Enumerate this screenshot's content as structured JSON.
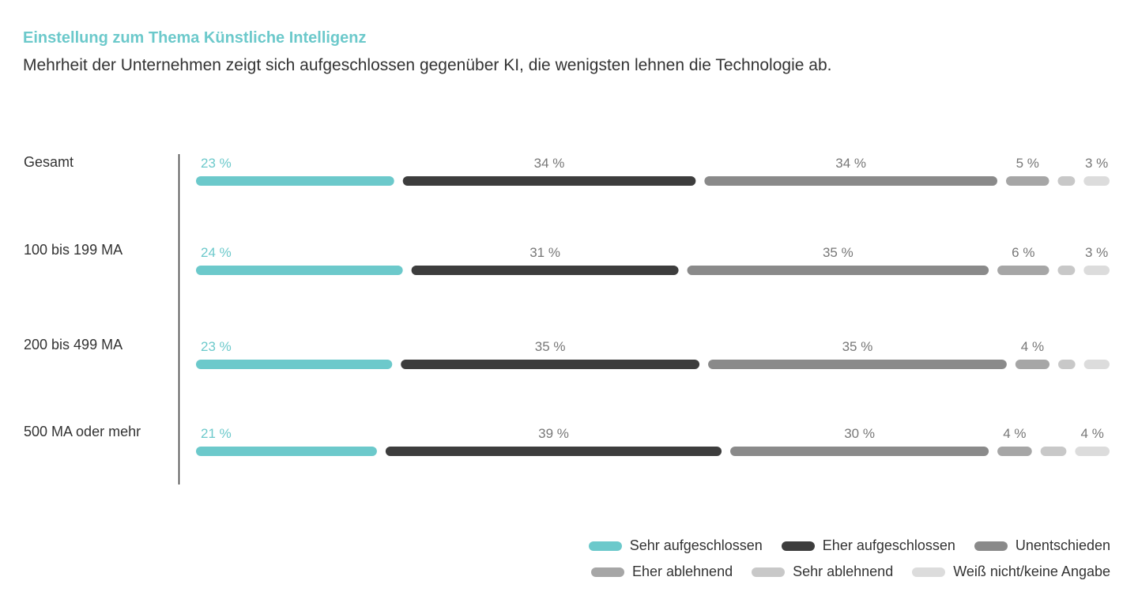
{
  "title": "Einstellung zum Thema Künstliche Intelligenz",
  "subtitle": "Mehrheit der Unternehmen zeigt sich aufgeschlossen gegenüber KI, die wenigsten lehnen die Technologie ab.",
  "colors": {
    "Sehr aufgeschlossen": "#6cc9cb",
    "Eher aufgeschlossen": "#3d3d3d",
    "Unentschieden": "#8a8a8a",
    "Eher ablehnend": "#a6a6a6",
    "Sehr ablehnend": "#c8c8c8",
    "Weiß nicht/keine Angabe": "#dcdcdc",
    "value_label_teal": "#6cc9cb",
    "value_label_grey": "#777777"
  },
  "chart_data": {
    "type": "bar",
    "orientation": "horizontal",
    "stacked": true,
    "title": "Einstellung zum Thema Künstliche Intelligenz",
    "subtitle": "Mehrheit der Unternehmen zeigt sich aufgeschlossen gegenüber KI, die wenigsten lehnen die Technologie ab.",
    "categories": [
      "Gesamt",
      "100 bis 199 MA",
      "200 bis 499 MA",
      "500 MA oder mehr"
    ],
    "series": [
      {
        "name": "Sehr aufgeschlossen",
        "values": [
          23,
          24,
          23,
          21
        ],
        "labels": [
          "23 %",
          "24 %",
          "23 %",
          "21 %"
        ]
      },
      {
        "name": "Eher aufgeschlossen",
        "values": [
          34,
          31,
          35,
          39
        ],
        "labels": [
          "34 %",
          "31 %",
          "35 %",
          "39 %"
        ]
      },
      {
        "name": "Unentschieden",
        "values": [
          34,
          35,
          35,
          30
        ],
        "labels": [
          "34 %",
          "35 %",
          "35 %",
          "30 %"
        ]
      },
      {
        "name": "Eher ablehnend",
        "values": [
          5,
          6,
          4,
          4
        ],
        "labels": [
          "5 %",
          "6 %",
          "4 %",
          "4 %"
        ]
      },
      {
        "name": "Sehr ablehnend",
        "values": [
          2,
          2,
          2,
          3
        ],
        "labels": [
          "",
          "",
          "",
          ""
        ]
      },
      {
        "name": "Weiß nicht/keine Angabe",
        "values": [
          3,
          3,
          3,
          4
        ],
        "labels": [
          "3 %",
          "3 %",
          "",
          "4 %"
        ]
      }
    ],
    "xlim": [
      0,
      100
    ],
    "legend_position": "bottom-right",
    "grid": false
  },
  "legend": {
    "row1": [
      "Sehr aufgeschlossen",
      "Eher aufgeschlossen",
      "Unentschieden"
    ],
    "row2": [
      "Eher ablehnend",
      "Sehr ablehnend",
      "Weiß nicht/keine Angabe"
    ]
  }
}
